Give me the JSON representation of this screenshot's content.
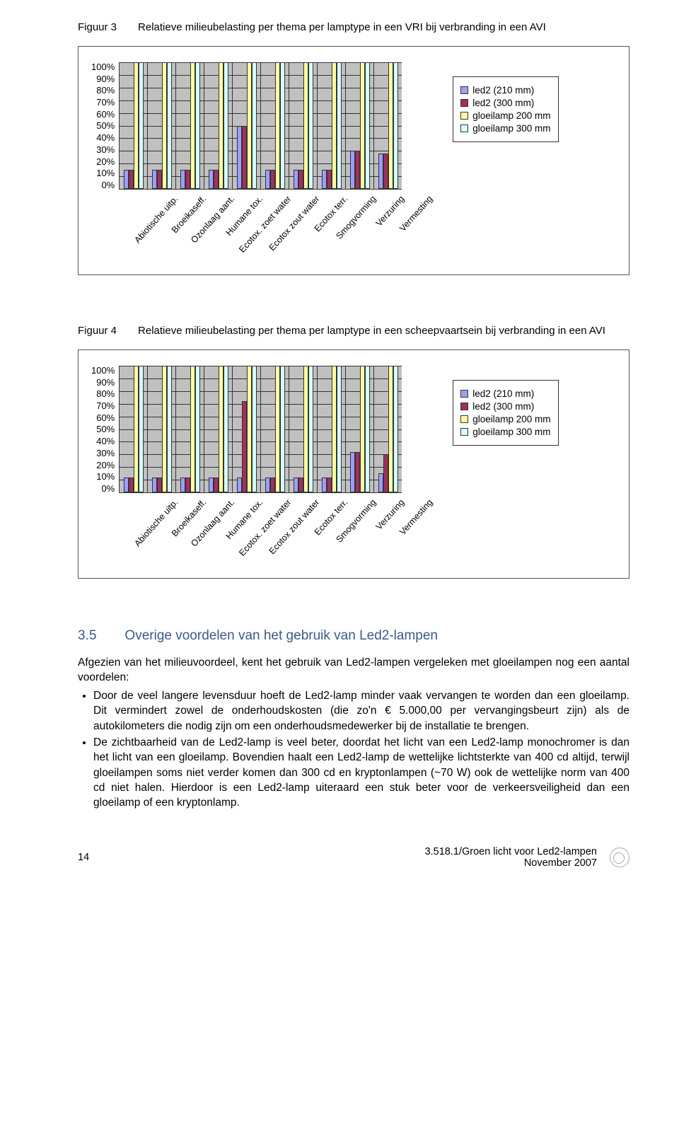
{
  "style": {
    "bg": "#ffffff",
    "grid": "#333333",
    "plot_bg": "#c0c0c0",
    "heading_color": "#3a5a8a",
    "series_colors": [
      "#9aa0ff",
      "#a03060",
      "#ffffa0",
      "#d6ffff"
    ],
    "bar_border": "#333333",
    "y_ticks": [
      "100%",
      "90%",
      "80%",
      "70%",
      "60%",
      "50%",
      "40%",
      "30%",
      "20%",
      "10%",
      "0%"
    ],
    "ylim": [
      0,
      100
    ],
    "legend_labels": [
      "led2 (210 mm)",
      "led2 (300 mm)",
      "gloeilamp 200 mm",
      "gloeilamp 300 mm"
    ],
    "categories": [
      "Abiotische uitp.",
      "Broeikaseff.",
      "Ozonlaag aant.",
      "Humane tox.",
      "Ecotox. zoet water",
      "Ecotox zout water",
      "Ecotox terr.",
      "Smogvorming",
      "Verzuring",
      "Vermesting"
    ]
  },
  "figure3": {
    "label": "Figuur 3",
    "caption": "Relatieve milieubelasting per thema per lamptype in een VRI bij verbranding in een AVI",
    "data": [
      [
        15,
        15,
        100,
        100
      ],
      [
        15,
        15,
        100,
        100
      ],
      [
        15,
        15,
        100,
        100
      ],
      [
        15,
        15,
        100,
        100
      ],
      [
        50,
        50,
        100,
        100
      ],
      [
        15,
        15,
        100,
        100
      ],
      [
        15,
        15,
        100,
        100
      ],
      [
        15,
        15,
        100,
        100
      ],
      [
        30,
        30,
        100,
        100
      ],
      [
        28,
        28,
        100,
        100
      ]
    ]
  },
  "figure4": {
    "label": "Figuur 4",
    "caption": "Relatieve milieubelasting per thema per lamptype in een scheepvaartsein bij verbranding in een AVI",
    "data": [
      [
        12,
        12,
        100,
        100
      ],
      [
        12,
        12,
        100,
        100
      ],
      [
        12,
        12,
        100,
        100
      ],
      [
        12,
        12,
        100,
        100
      ],
      [
        12,
        72,
        100,
        100
      ],
      [
        12,
        12,
        100,
        100
      ],
      [
        12,
        12,
        100,
        100
      ],
      [
        12,
        12,
        100,
        100
      ],
      [
        32,
        32,
        100,
        100
      ],
      [
        15,
        30,
        100,
        100
      ]
    ]
  },
  "section": {
    "number": "3.5",
    "title": "Overige voordelen van het gebruik van Led2-lampen",
    "intro": "Afgezien van het milieuvoordeel, kent het gebruik van Led2-lampen vergeleken met gloeilampen nog een aantal voordelen:",
    "bullets": [
      "Door de veel langere levensduur hoeft de Led2-lamp minder vaak vervangen te worden dan een gloeilamp. Dit vermindert zowel de onderhoudskosten (die zo'n € 5.000,00 per vervangingsbeurt zijn) als de autokilometers die nodig zijn om een onderhoudsmedewerker bij de installatie te brengen.",
      "De zichtbaarheid van de Led2-lamp is veel beter, doordat het licht van een Led2-lamp monochromer is dan het licht van een gloeilamp. Bovendien haalt een Led2-lamp de wettelijke lichtsterkte van 400 cd altijd, terwijl gloeilampen soms niet verder komen dan 300 cd en kryptonlampen (~70 W) ook de wettelijke norm van 400 cd niet halen. Hierdoor is een Led2-lamp uiteraard een stuk beter voor de verkeersveiligheid dan een gloeilamp of een kryptonlamp."
    ]
  },
  "footer": {
    "page": "14",
    "line1": "3.518.1/Groen licht voor Led2-lampen",
    "line2": "November 2007"
  }
}
